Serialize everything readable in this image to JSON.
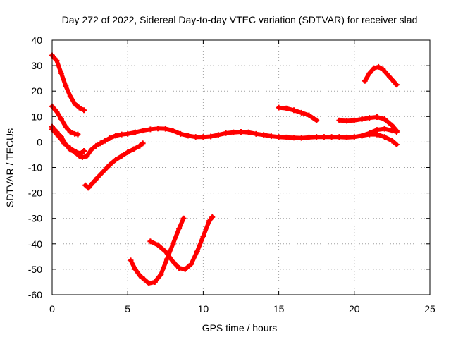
{
  "chart_data": {
    "type": "line",
    "title": "Day 272 of 2022, Sidereal Day-to-day VTEC variation (SDTVAR) for receiver slad",
    "xlabel": "GPS time / hours",
    "ylabel": "SDTVAR / TECUs",
    "xlim": [
      0,
      25
    ],
    "ylim": [
      -60,
      40
    ],
    "xticks": [
      0,
      5,
      10,
      15,
      20,
      25
    ],
    "yticks": [
      -60,
      -50,
      -40,
      -30,
      -20,
      -10,
      0,
      10,
      20,
      30,
      40
    ],
    "grid": true,
    "series_color": "#ff0000",
    "series": [
      {
        "name": "s1",
        "points": [
          [
            0,
            34
          ],
          [
            0.3,
            32
          ],
          [
            0.6,
            27
          ],
          [
            0.9,
            22
          ],
          [
            1.2,
            18
          ],
          [
            1.5,
            15
          ],
          [
            1.8,
            13.5
          ],
          [
            2.1,
            12.5
          ]
        ]
      },
      {
        "name": "s2",
        "points": [
          [
            0,
            14
          ],
          [
            0.3,
            12
          ],
          [
            0.6,
            9
          ],
          [
            0.9,
            6
          ],
          [
            1.2,
            4
          ],
          [
            1.5,
            3.2
          ],
          [
            1.7,
            3
          ]
        ]
      },
      {
        "name": "s3",
        "points": [
          [
            0,
            6
          ],
          [
            0.3,
            4
          ],
          [
            0.6,
            2
          ],
          [
            0.9,
            -1
          ],
          [
            1.2,
            -3
          ],
          [
            1.5,
            -4
          ],
          [
            1.8,
            -5.5
          ],
          [
            2.0,
            -6
          ],
          [
            2.3,
            -5.5
          ],
          [
            2.6,
            -3
          ],
          [
            2.9,
            -1.5
          ],
          [
            3.2,
            -0.5
          ],
          [
            3.5,
            0.5
          ],
          [
            3.8,
            1.5
          ],
          [
            4.2,
            2.5
          ],
          [
            4.6,
            3
          ],
          [
            5.0,
            3.2
          ],
          [
            5.5,
            3.8
          ],
          [
            6.0,
            4.5
          ],
          [
            6.5,
            5
          ],
          [
            7.0,
            5.3
          ],
          [
            7.5,
            5.2
          ],
          [
            8.0,
            4.5
          ],
          [
            8.5,
            3.2
          ],
          [
            9.0,
            2.5
          ],
          [
            9.5,
            2
          ],
          [
            10.0,
            2
          ],
          [
            10.5,
            2.2
          ],
          [
            11.0,
            2.8
          ],
          [
            11.5,
            3.5
          ],
          [
            12.0,
            3.8
          ],
          [
            12.5,
            4
          ],
          [
            13.0,
            3.8
          ],
          [
            13.5,
            3.2
          ],
          [
            14.0,
            2.8
          ],
          [
            14.5,
            2.3
          ],
          [
            15.0,
            2
          ],
          [
            15.5,
            1.8
          ],
          [
            16.0,
            1.7
          ],
          [
            16.5,
            1.6
          ],
          [
            17.0,
            1.8
          ],
          [
            17.5,
            2
          ],
          [
            18.0,
            2
          ],
          [
            18.5,
            2
          ],
          [
            19.0,
            2
          ],
          [
            19.5,
            1.8
          ],
          [
            20.0,
            2
          ],
          [
            20.5,
            2.5
          ],
          [
            21.0,
            3.5
          ],
          [
            21.5,
            4.8
          ],
          [
            22.0,
            5.2
          ],
          [
            22.5,
            4.5
          ],
          [
            22.8,
            4
          ]
        ]
      },
      {
        "name": "s4",
        "points": [
          [
            0,
            5
          ],
          [
            0.4,
            2.5
          ],
          [
            0.8,
            -0.5
          ],
          [
            1.2,
            -2.5
          ],
          [
            1.6,
            -4
          ],
          [
            1.9,
            -4.5
          ],
          [
            2.1,
            -3.5
          ]
        ]
      },
      {
        "name": "s5",
        "points": [
          [
            2.2,
            -17
          ],
          [
            2.4,
            -18
          ],
          [
            2.7,
            -16
          ],
          [
            3.0,
            -14
          ],
          [
            3.4,
            -11.5
          ],
          [
            3.8,
            -9
          ],
          [
            4.2,
            -7
          ],
          [
            4.6,
            -5.5
          ],
          [
            5.0,
            -4
          ],
          [
            5.4,
            -2.8
          ],
          [
            5.8,
            -1.5
          ],
          [
            6.0,
            -0.5
          ]
        ]
      },
      {
        "name": "s6",
        "points": [
          [
            5.2,
            -46.5
          ],
          [
            5.5,
            -50
          ],
          [
            5.8,
            -52.5
          ],
          [
            6.1,
            -54
          ],
          [
            6.4,
            -55.5
          ],
          [
            6.8,
            -55
          ],
          [
            7.2,
            -52
          ],
          [
            7.6,
            -46
          ],
          [
            8.0,
            -40
          ],
          [
            8.4,
            -34
          ],
          [
            8.7,
            -30
          ]
        ]
      },
      {
        "name": "s7",
        "points": [
          [
            6.5,
            -39
          ],
          [
            7.0,
            -40.5
          ],
          [
            7.5,
            -43
          ],
          [
            8.0,
            -47
          ],
          [
            8.4,
            -49.5
          ],
          [
            8.8,
            -50
          ],
          [
            9.2,
            -48
          ],
          [
            9.6,
            -43
          ],
          [
            10.0,
            -37
          ],
          [
            10.4,
            -31
          ],
          [
            10.6,
            -29.5
          ]
        ]
      },
      {
        "name": "s8",
        "points": [
          [
            15.0,
            13.5
          ],
          [
            15.5,
            13.2
          ],
          [
            16.0,
            12.5
          ],
          [
            16.5,
            11.5
          ],
          [
            17.0,
            10.5
          ],
          [
            17.5,
            8.5
          ]
        ]
      },
      {
        "name": "s9",
        "points": [
          [
            19.0,
            8.5
          ],
          [
            19.5,
            8.3
          ],
          [
            20.0,
            8.5
          ],
          [
            20.5,
            9
          ],
          [
            21.0,
            9.5
          ],
          [
            21.5,
            9.8
          ],
          [
            22.0,
            9
          ],
          [
            22.5,
            6.5
          ],
          [
            22.8,
            4.5
          ]
        ]
      },
      {
        "name": "s10",
        "points": [
          [
            20.7,
            24
          ],
          [
            21.0,
            27
          ],
          [
            21.3,
            29
          ],
          [
            21.6,
            29.5
          ],
          [
            21.9,
            28.5
          ],
          [
            22.2,
            26.5
          ],
          [
            22.5,
            24.5
          ],
          [
            22.8,
            22.5
          ]
        ]
      },
      {
        "name": "s11",
        "points": [
          [
            20.5,
            2.5
          ],
          [
            21.0,
            3
          ],
          [
            21.5,
            3
          ],
          [
            22.0,
            2
          ],
          [
            22.5,
            0.5
          ],
          [
            22.8,
            -1
          ]
        ]
      }
    ]
  }
}
